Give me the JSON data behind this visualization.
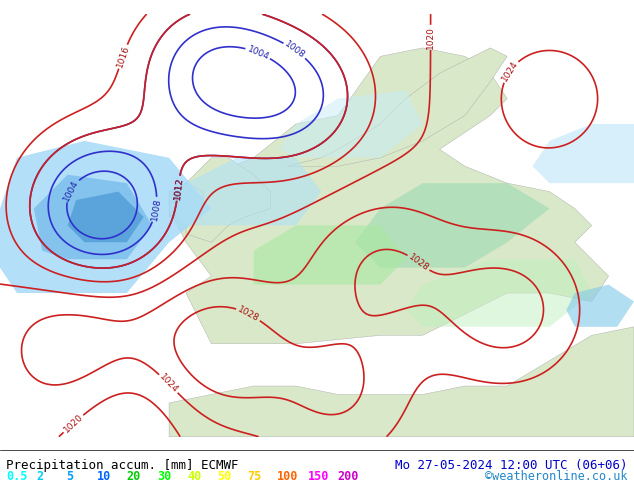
{
  "title_left": "Precipitation accum. [mm] ECMWF",
  "title_right": "Mo 27-05-2024 12:00 UTC (06+06)",
  "watermark": "©weatheronline.co.uk",
  "legend_values": [
    "0.5",
    "2",
    "5",
    "10",
    "20",
    "30",
    "40",
    "50",
    "75",
    "100",
    "150",
    "200"
  ],
  "legend_colors": [
    "#00ffff",
    "#00ccff",
    "#0099ff",
    "#0066ff",
    "#00cc00",
    "#00ff00",
    "#ccff00",
    "#ffff00",
    "#ffcc00",
    "#ff6600",
    "#ff00ff",
    "#cc00cc"
  ],
  "bg_color": "#e8f4e8",
  "map_bg": "#d0e8d0",
  "sea_color": "#c8e0f0",
  "land_color": "#d8e8c8",
  "fig_width": 6.34,
  "fig_height": 4.9,
  "dpi": 100,
  "bottom_bar_color": "#000000",
  "title_fontsize": 9,
  "legend_fontsize": 8.5
}
